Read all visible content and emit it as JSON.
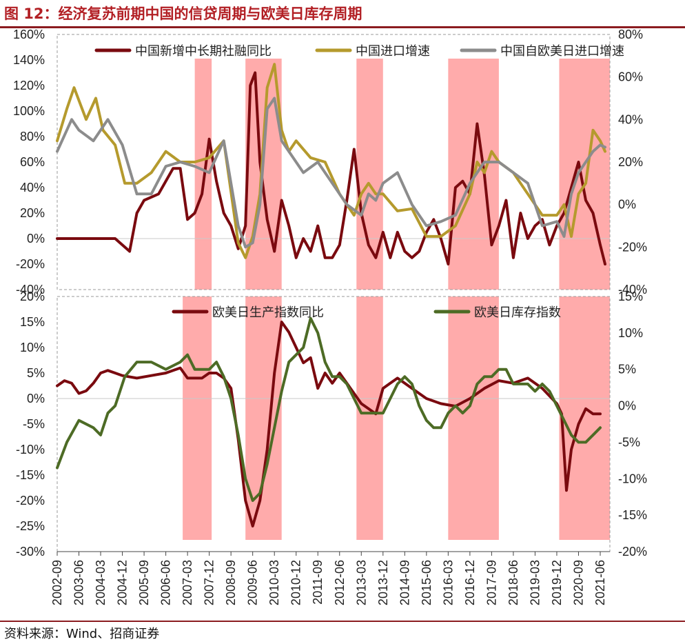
{
  "title": "图 12：经济复苏前期中国的信贷周期与欧美日库存周期",
  "source": "资料来源：Wind、招商证券",
  "colors": {
    "credit": "#7a0a0f",
    "import": "#b59a2d",
    "eujp_import": "#8c8c8c",
    "production": "#7a0a0f",
    "inventory": "#4d6b25",
    "shade": "#ff9c9c",
    "title": "#b21f24"
  },
  "x_ticks": [
    "2002-09",
    "2003-06",
    "2004-03",
    "2004-12",
    "2005-09",
    "2006-06",
    "2007-03",
    "2007-12",
    "2008-09",
    "2009-06",
    "2010-03",
    "2010-12",
    "2011-09",
    "2012-06",
    "2013-03",
    "2013-12",
    "2014-09",
    "2015-06",
    "2016-03",
    "2016-12",
    "2017-09",
    "2018-06",
    "2019-03",
    "2019-12",
    "2020-09",
    "2021-06"
  ],
  "chart_data": [
    {
      "type": "line",
      "panel": "top",
      "y_left_ticks": [
        "160%",
        "140%",
        "120%",
        "100%",
        "80%",
        "60%",
        "40%",
        "20%",
        "0%",
        "-20%",
        "-40%"
      ],
      "y_right_ticks": [
        "80%",
        "60%",
        "40%",
        "20%",
        "0%",
        "-20%",
        "-40%"
      ],
      "ylim_left": [
        -40,
        160
      ],
      "ylim_right": [
        -40,
        80
      ],
      "shaded_periods": [
        [
          "2007-06",
          "2008-01"
        ],
        [
          "2009-03",
          "2010-06"
        ],
        [
          "2013-01",
          "2013-12"
        ],
        [
          "2016-03",
          "2017-12"
        ],
        [
          "2020-01",
          "2021-10"
        ]
      ],
      "series": [
        {
          "name": "中国新增中长期社融同比",
          "axis": "left",
          "color_key": "credit",
          "x": [
            "2002-09",
            "2003-03",
            "2004-09",
            "2005-03",
            "2005-06",
            "2005-09",
            "2006-03",
            "2006-09",
            "2006-12",
            "2007-03",
            "2007-06",
            "2007-09",
            "2007-12",
            "2008-03",
            "2008-06",
            "2008-09",
            "2008-12",
            "2009-03",
            "2009-05",
            "2009-07",
            "2009-09",
            "2009-12",
            "2010-03",
            "2010-06",
            "2010-09",
            "2010-12",
            "2011-03",
            "2011-06",
            "2011-09",
            "2011-12",
            "2012-03",
            "2012-06",
            "2012-09",
            "2012-12",
            "2013-03",
            "2013-06",
            "2013-09",
            "2013-12",
            "2014-03",
            "2014-06",
            "2014-09",
            "2014-12",
            "2015-03",
            "2015-06",
            "2015-09",
            "2015-12",
            "2016-03",
            "2016-06",
            "2016-09",
            "2016-12",
            "2017-03",
            "2017-06",
            "2017-09",
            "2017-12",
            "2018-03",
            "2018-06",
            "2018-09",
            "2018-12",
            "2019-03",
            "2019-06",
            "2019-09",
            "2019-12",
            "2020-03",
            "2020-06",
            "2020-09",
            "2020-12",
            "2021-03",
            "2021-06",
            "2021-08"
          ],
          "values": [
            0,
            0,
            0,
            -10,
            20,
            30,
            35,
            55,
            55,
            15,
            20,
            35,
            78,
            45,
            20,
            10,
            -8,
            10,
            120,
            130,
            60,
            15,
            -10,
            30,
            10,
            -15,
            0,
            -10,
            10,
            -15,
            -15,
            -5,
            30,
            70,
            20,
            -5,
            -15,
            5,
            -15,
            5,
            -10,
            -15,
            -10,
            5,
            15,
            0,
            -20,
            40,
            45,
            35,
            90,
            50,
            -5,
            10,
            30,
            -15,
            20,
            0,
            10,
            15,
            -5,
            10,
            20,
            40,
            60,
            30,
            20,
            -5,
            -20
          ]
        },
        {
          "name": "中国进口增速",
          "axis": "right",
          "color_key": "import",
          "x": [
            "2002-09",
            "2003-01",
            "2003-04",
            "2003-09",
            "2004-01",
            "2004-04",
            "2004-09",
            "2005-01",
            "2005-06",
            "2005-12",
            "2006-06",
            "2006-12",
            "2007-06",
            "2007-12",
            "2008-06",
            "2008-12",
            "2009-03",
            "2009-06",
            "2009-09",
            "2009-12",
            "2010-03",
            "2010-06",
            "2010-09",
            "2010-12",
            "2011-06",
            "2011-12",
            "2012-06",
            "2012-12",
            "2013-03",
            "2013-06",
            "2013-09",
            "2013-12",
            "2014-06",
            "2014-12",
            "2015-06",
            "2015-12",
            "2016-06",
            "2016-12",
            "2017-03",
            "2017-06",
            "2017-09",
            "2017-12",
            "2018-06",
            "2018-12",
            "2019-06",
            "2019-12",
            "2020-03",
            "2020-06",
            "2020-09",
            "2020-12",
            "2021-03",
            "2021-06",
            "2021-08"
          ],
          "values": [
            30,
            45,
            55,
            40,
            50,
            35,
            28,
            10,
            10,
            15,
            25,
            20,
            20,
            22,
            30,
            -18,
            -25,
            -15,
            5,
            55,
            66,
            35,
            25,
            30,
            22,
            20,
            5,
            -5,
            5,
            10,
            5,
            5,
            -3,
            -2,
            -15,
            -15,
            -10,
            5,
            20,
            15,
            25,
            20,
            15,
            5,
            -5,
            -5,
            0,
            -15,
            5,
            10,
            35,
            30,
            25
          ]
        },
        {
          "name": "中国自欧美日进口增速",
          "axis": "right",
          "color_key": "eujp_import",
          "x": [
            "2002-09",
            "2003-03",
            "2003-06",
            "2003-12",
            "2004-06",
            "2004-12",
            "2005-06",
            "2005-12",
            "2006-06",
            "2006-12",
            "2007-06",
            "2007-12",
            "2008-06",
            "2008-12",
            "2009-03",
            "2009-06",
            "2009-09",
            "2009-12",
            "2010-03",
            "2010-06",
            "2010-09",
            "2011-03",
            "2011-09",
            "2012-03",
            "2012-09",
            "2013-03",
            "2013-06",
            "2013-09",
            "2013-12",
            "2014-06",
            "2014-12",
            "2015-06",
            "2015-12",
            "2016-06",
            "2016-12",
            "2017-06",
            "2017-12",
            "2018-06",
            "2018-12",
            "2019-06",
            "2019-12",
            "2020-03",
            "2020-06",
            "2020-09",
            "2020-12",
            "2021-03",
            "2021-06",
            "2021-08"
          ],
          "values": [
            25,
            40,
            35,
            30,
            40,
            28,
            5,
            5,
            18,
            20,
            18,
            15,
            30,
            -10,
            -20,
            -18,
            0,
            45,
            50,
            30,
            25,
            15,
            20,
            10,
            0,
            -5,
            5,
            2,
            10,
            15,
            0,
            -10,
            -8,
            -5,
            10,
            20,
            20,
            15,
            10,
            -10,
            -8,
            -15,
            5,
            15,
            20,
            25,
            28,
            27
          ]
        }
      ]
    },
    {
      "type": "line",
      "panel": "bottom",
      "y_left_ticks": [
        "20%",
        "15%",
        "10%",
        "5%",
        "0%",
        "-5%",
        "-10%",
        "-15%",
        "-20%",
        "-25%",
        "-30%"
      ],
      "y_right_ticks": [
        "15%",
        "10%",
        "5%",
        "0%",
        "-5%",
        "-10%",
        "-15%",
        "-20%"
      ],
      "ylim_left": [
        -30,
        20
      ],
      "ylim_right": [
        -20,
        15
      ],
      "shaded_periods": [
        [
          "2007-01",
          "2008-01"
        ],
        [
          "2009-03",
          "2010-06"
        ],
        [
          "2013-01",
          "2013-12"
        ],
        [
          "2016-03",
          "2017-12"
        ],
        [
          "2020-01",
          "2021-10"
        ]
      ],
      "series": [
        {
          "name": "欧美日生产指数同比",
          "axis": "left",
          "color_key": "production",
          "x": [
            "2002-09",
            "2002-12",
            "2003-03",
            "2003-06",
            "2003-09",
            "2003-12",
            "2004-03",
            "2004-06",
            "2004-09",
            "2004-12",
            "2005-06",
            "2005-12",
            "2006-06",
            "2006-12",
            "2007-03",
            "2007-09",
            "2007-12",
            "2008-03",
            "2008-06",
            "2008-09",
            "2008-12",
            "2009-03",
            "2009-06",
            "2009-09",
            "2009-12",
            "2010-03",
            "2010-06",
            "2010-09",
            "2010-12",
            "2011-03",
            "2011-06",
            "2011-09",
            "2011-12",
            "2012-03",
            "2012-06",
            "2012-09",
            "2012-12",
            "2013-03",
            "2013-06",
            "2013-09",
            "2013-12",
            "2014-03",
            "2014-06",
            "2014-09",
            "2014-12",
            "2015-06",
            "2015-12",
            "2016-06",
            "2016-12",
            "2017-06",
            "2017-12",
            "2018-06",
            "2018-12",
            "2019-06",
            "2019-12",
            "2020-02",
            "2020-04",
            "2020-06",
            "2020-09",
            "2020-12",
            "2021-03",
            "2021-06"
          ],
          "values": [
            2.5,
            3.5,
            3,
            1,
            1.5,
            3,
            5,
            5.5,
            5,
            4.5,
            4,
            4.5,
            5,
            6,
            4,
            4,
            5,
            5,
            4,
            2,
            -8,
            -20,
            -25,
            -20,
            -10,
            5,
            15,
            13,
            10,
            7,
            8,
            2,
            5,
            3,
            5,
            3,
            1,
            -1,
            -2,
            -3,
            2,
            3,
            4,
            3,
            2,
            0,
            -1,
            -1.5,
            0,
            2,
            3.5,
            3,
            4,
            2,
            -1,
            -3,
            -18,
            -10,
            -5,
            -2,
            -3,
            -3
          ]
        },
        {
          "name": "欧美日库存指数",
          "axis": "right",
          "color_key": "inventory",
          "x": [
            "2002-09",
            "2003-01",
            "2003-06",
            "2003-12",
            "2004-03",
            "2004-06",
            "2004-09",
            "2005-01",
            "2005-06",
            "2005-12",
            "2006-06",
            "2006-12",
            "2007-03",
            "2007-06",
            "2007-12",
            "2008-03",
            "2008-06",
            "2008-09",
            "2008-12",
            "2009-03",
            "2009-06",
            "2009-09",
            "2009-12",
            "2010-03",
            "2010-06",
            "2010-09",
            "2010-12",
            "2011-03",
            "2011-06",
            "2011-09",
            "2011-12",
            "2012-03",
            "2012-06",
            "2012-09",
            "2012-12",
            "2013-03",
            "2013-06",
            "2013-09",
            "2013-12",
            "2014-03",
            "2014-06",
            "2014-09",
            "2014-12",
            "2015-03",
            "2015-06",
            "2015-09",
            "2015-12",
            "2016-03",
            "2016-06",
            "2016-09",
            "2016-12",
            "2017-03",
            "2017-06",
            "2017-09",
            "2017-12",
            "2018-03",
            "2018-06",
            "2018-09",
            "2018-12",
            "2019-03",
            "2019-06",
            "2019-09",
            "2019-12",
            "2020-03",
            "2020-06",
            "2020-09",
            "2020-12",
            "2021-03",
            "2021-06"
          ],
          "values": [
            -8.5,
            -5,
            -2,
            -3,
            -4,
            -1,
            0,
            4,
            6,
            6,
            5,
            6,
            7,
            5,
            5,
            6,
            4,
            1,
            -4,
            -10,
            -13,
            -12,
            -8,
            -3,
            2,
            6,
            7,
            8,
            12,
            10,
            6,
            4,
            4,
            3,
            1,
            -1,
            -1,
            -1,
            -1,
            1,
            3,
            4,
            3,
            0,
            -2,
            -3,
            -3,
            -1,
            0,
            -1,
            0,
            3,
            4,
            4,
            5,
            5,
            3,
            3,
            3,
            2,
            3,
            2,
            0,
            -2,
            -4,
            -5,
            -5,
            -4,
            -3
          ]
        }
      ]
    }
  ]
}
